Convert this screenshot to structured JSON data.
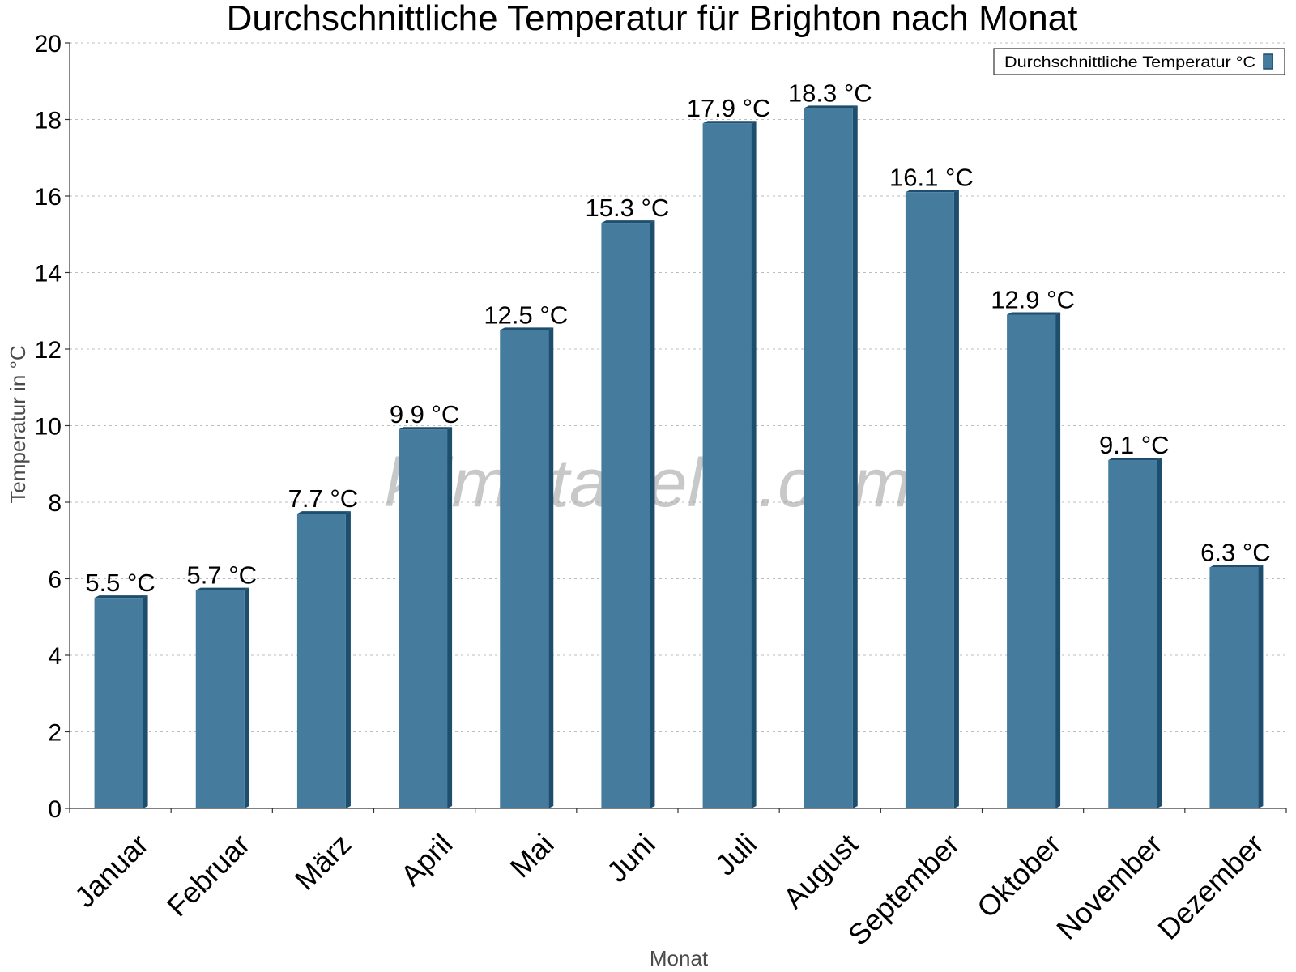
{
  "chart_data": {
    "type": "bar",
    "title": "Durchschnittliche Temperatur für Brighton nach Monat",
    "xlabel": "Monat",
    "ylabel": "Temperatur in °C",
    "ylim": [
      0,
      20
    ],
    "yticks": [
      0,
      2,
      4,
      6,
      8,
      10,
      12,
      14,
      16,
      18,
      20
    ],
    "grid": true,
    "legend_position": "top-right",
    "categories": [
      "Januar",
      "Februar",
      "März",
      "April",
      "Mai",
      "Juni",
      "Juli",
      "August",
      "September",
      "Oktober",
      "November",
      "Dezember"
    ],
    "series": [
      {
        "name": "Durchschnittliche Temperatur °C",
        "color": "#457b9d",
        "values": [
          5.5,
          5.7,
          7.7,
          9.9,
          12.5,
          15.3,
          17.9,
          18.3,
          16.1,
          12.9,
          9.1,
          6.3
        ],
        "labels": [
          "5.5 °C",
          "5.7 °C",
          "7.7 °C",
          "9.9 °C",
          "12.5 °C",
          "15.3 °C",
          "17.9 °C",
          "18.3 °C",
          "16.1 °C",
          "12.9 °C",
          "9.1 °C",
          "6.3 °C"
        ]
      }
    ]
  },
  "watermark": "klimatabelle.com",
  "colors": {
    "bar": "#457b9d",
    "bar_edge": "#1d4e6e"
  }
}
